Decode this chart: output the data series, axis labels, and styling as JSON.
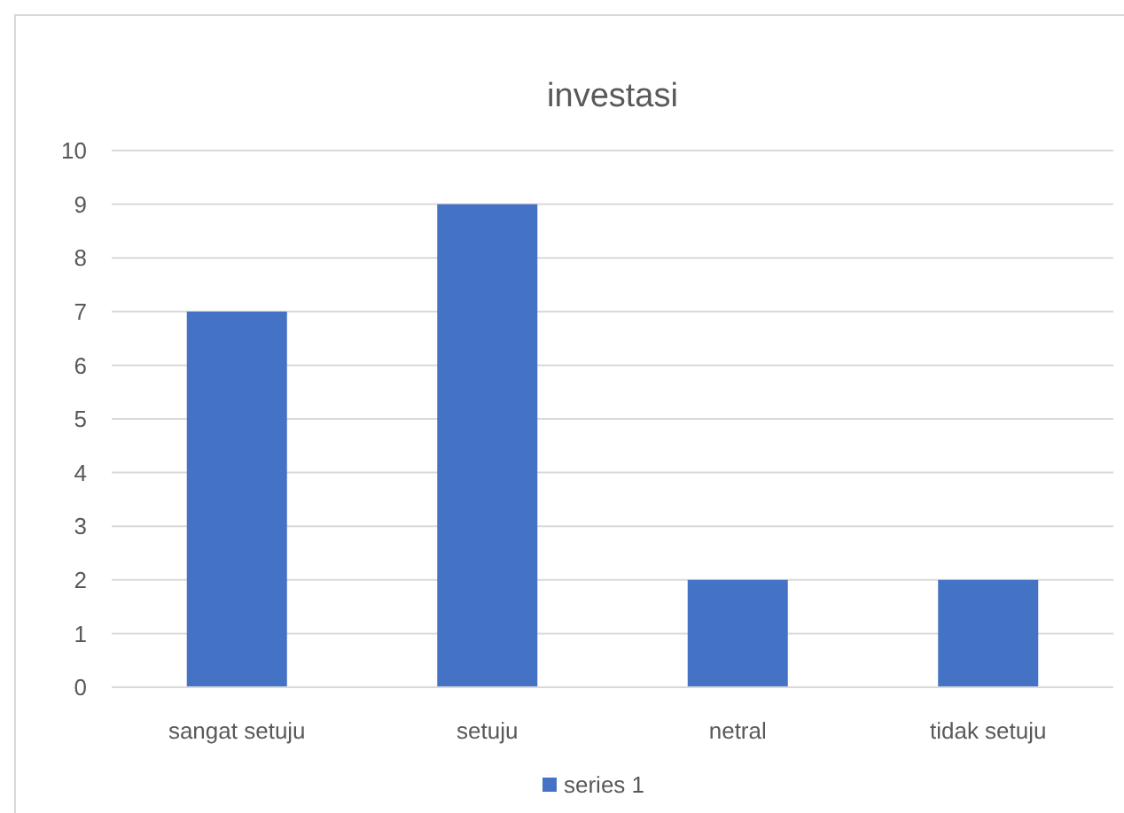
{
  "chart_data": {
    "type": "bar",
    "title": "investasi",
    "categories": [
      "sangat setuju",
      "setuju",
      "netral",
      "tidak setuju"
    ],
    "series": [
      {
        "name": "series 1",
        "color": "#4472c4",
        "values": [
          7,
          9,
          2,
          2
        ]
      }
    ],
    "ylim": [
      0,
      10
    ],
    "yticks": [
      0,
      1,
      2,
      3,
      4,
      5,
      6,
      7,
      8,
      9,
      10
    ],
    "grid": "y",
    "legend": "bottom"
  }
}
